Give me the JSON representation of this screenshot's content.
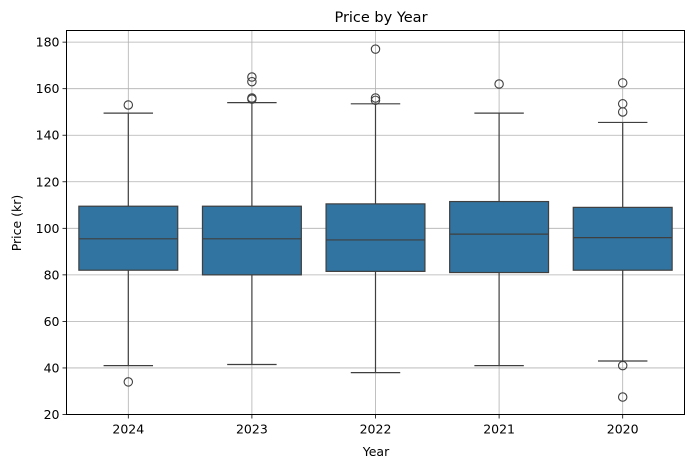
{
  "chart_data": {
    "type": "box",
    "title": "Price by Year",
    "xlabel": "Year",
    "ylabel": "Price (kr)",
    "ylim": [
      20,
      185
    ],
    "yticks": [
      20,
      40,
      60,
      80,
      100,
      120,
      140,
      160,
      180
    ],
    "grid": true,
    "box_color": "#3274a1",
    "edge_color": "#3f3f3f",
    "categories": [
      "2024",
      "2023",
      "2022",
      "2021",
      "2020"
    ],
    "boxes": [
      {
        "category": "2024",
        "whisker_low": 41,
        "q1": 82,
        "median": 95.5,
        "q3": 109.5,
        "whisker_high": 149.5,
        "outliers": [
          153,
          34
        ]
      },
      {
        "category": "2023",
        "whisker_low": 41.5,
        "q1": 80,
        "median": 95.5,
        "q3": 109.5,
        "whisker_high": 154,
        "outliers": [
          155.5,
          156,
          163,
          165
        ]
      },
      {
        "category": "2022",
        "whisker_low": 38,
        "q1": 81.5,
        "median": 95,
        "q3": 110.5,
        "whisker_high": 153.5,
        "outliers": [
          155,
          156,
          177
        ]
      },
      {
        "category": "2021",
        "whisker_low": 41,
        "q1": 81,
        "median": 97.5,
        "q3": 111.5,
        "whisker_high": 149.5,
        "outliers": [
          162
        ]
      },
      {
        "category": "2020",
        "whisker_low": 43,
        "q1": 82,
        "median": 96,
        "q3": 109,
        "whisker_high": 145.5,
        "outliers": [
          150,
          153.5,
          162.5,
          41,
          27.5
        ]
      }
    ]
  }
}
